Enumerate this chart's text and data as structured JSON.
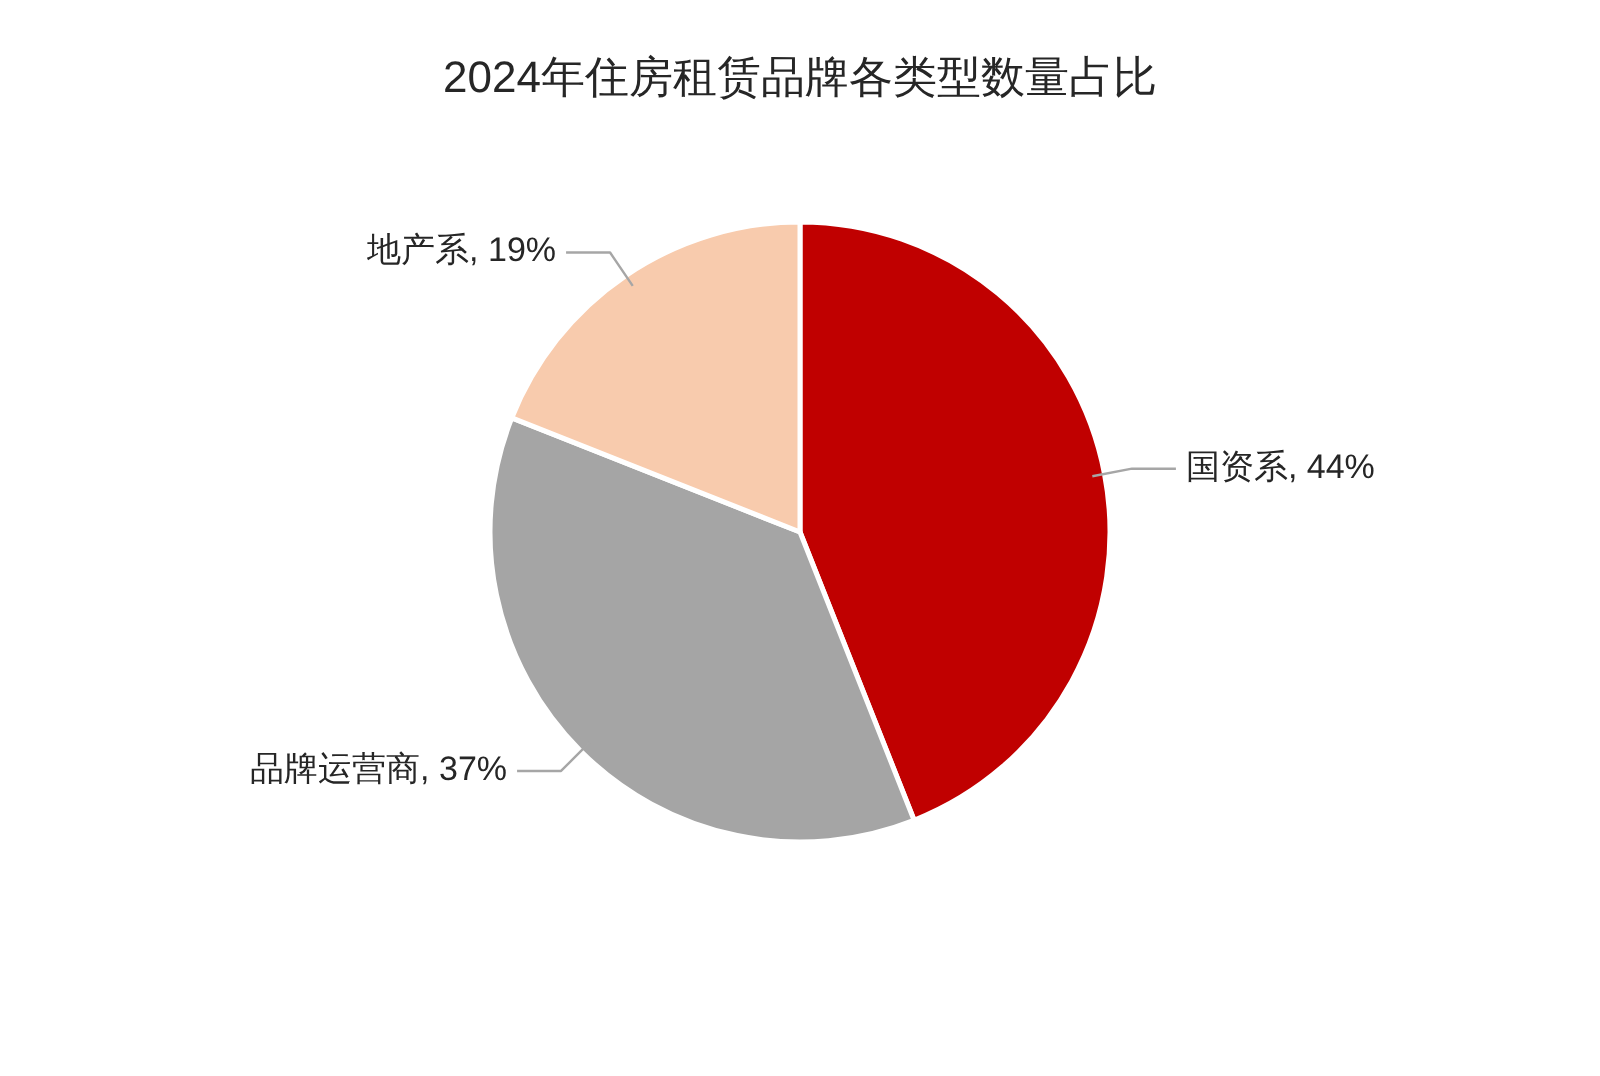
{
  "chart_data": {
    "type": "pie",
    "title": "2024年住房租赁品牌各类型数量占比",
    "categories": [
      "国资系",
      "品牌运营商",
      "地产系"
    ],
    "values": [
      44,
      37,
      19
    ],
    "value_labels": [
      "44%",
      "37%",
      "19%"
    ],
    "colors": [
      "#c00000",
      "#a5a5a5",
      "#f8cbad"
    ],
    "legend": false
  }
}
